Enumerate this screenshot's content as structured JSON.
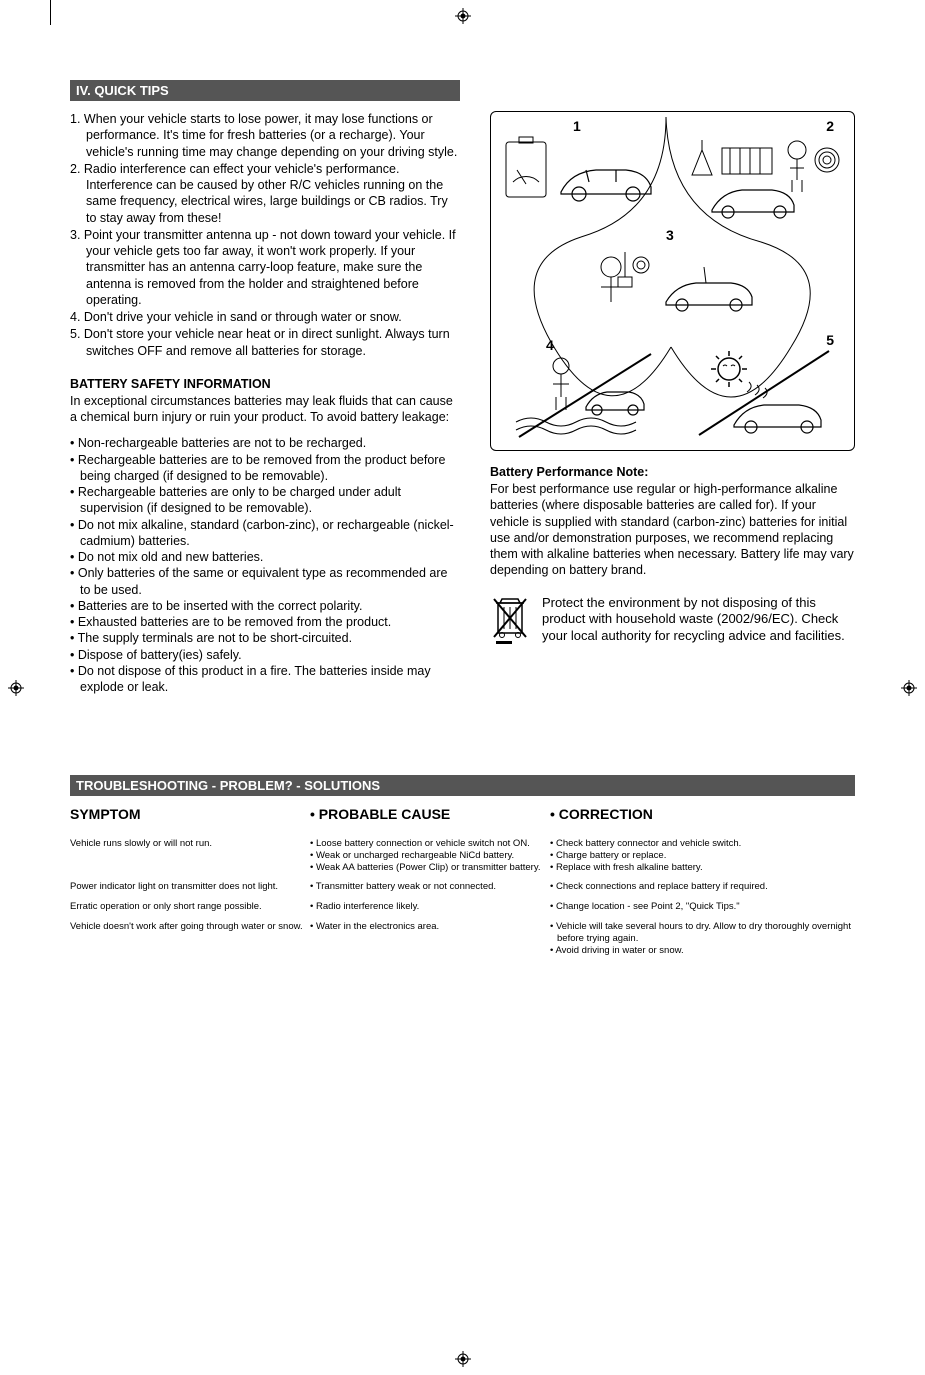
{
  "headers": {
    "quick_tips": "IV. QUICK TIPS",
    "troubleshooting": "TROUBLESHOOTING   -   PROBLEM? - SOLUTIONS"
  },
  "tips": [
    "1. When your vehicle starts to lose power, it may lose functions or performance. It's time for fresh batteries (or a recharge). Your vehicle's running time may change depending on your driving style.",
    "2. Radio interference can effect your vehicle's performance. Interference can be caused by other R/C vehicles running on the same frequency, electrical wires, large buildings or CB radios. Try to stay away from these!",
    "3. Point your transmitter antenna up - not down toward your  vehicle. If your vehicle gets too far away, it won't work properly. If your transmitter has an antenna carry-loop feature, make sure the antenna is removed from the holder and straightened before operating.",
    "4. Don't drive your vehicle in sand or through water or snow.",
    "5. Don't store your vehicle near heat or in direct sunlight. Always turn switches OFF and remove all batteries for storage."
  ],
  "battery_safety": {
    "heading": "BATTERY SAFETY INFORMATION",
    "intro": "In exceptional circumstances batteries may leak fluids that can cause a chemical burn injury or ruin your product. To avoid battery leakage:",
    "bullets": [
      "• Non-rechargeable batteries are not to be recharged.",
      "• Rechargeable batteries are to be removed from the product before being charged (if designed to be removable).",
      "• Rechargeable batteries are only to be charged under adult supervision (if designed to be removable).",
      "• Do not mix alkaline, standard (carbon-zinc), or rechargeable (nickel-cadmium) batteries.",
      "• Do not mix old and new batteries.",
      "• Only batteries of the same or equivalent type as recommended are to be used.",
      "• Batteries are to be inserted with the correct polarity.",
      "• Exhausted batteries are to be removed from the product.",
      "• The supply terminals are not to be short-circuited.",
      "• Dispose of battery(ies) safely.",
      "• Do not dispose of this product in a fire. The batteries inside may explode or leak."
    ]
  },
  "performance_note": {
    "heading": "Battery Performance Note:",
    "text": "For best performance use regular or high-performance alkaline batteries (where disposable batteries are called for). If your vehicle is supplied with standard (carbon-zinc) batteries for initial use and/or demonstration purposes, we recommend replacing them with alkaline batteries when necessary. Battery life may vary depending on battery brand."
  },
  "environment": {
    "text": "Protect the environment by not disposing of this product with household waste (2002/96/EC). Check your local authority for recycling advice and facilities."
  },
  "diagram": {
    "nums": [
      "1",
      "2",
      "3",
      "4",
      "5"
    ]
  },
  "troubleshoot": {
    "col_headings": [
      "SYMPTOM",
      "• PROBABLE CAUSE",
      "• CORRECTION"
    ],
    "rows": [
      {
        "symptom": "Vehicle runs slowly or will not run.",
        "cause": [
          "• Loose battery connection or vehicle switch not ON.",
          "• Weak or uncharged rechargeable NiCd battery.",
          "• Weak AA batteries (Power Clip) or transmitter battery."
        ],
        "correction": [
          "• Check battery connector and vehicle switch.",
          "• Charge battery or replace.",
          " ",
          "• Replace with fresh alkaline battery."
        ]
      },
      {
        "symptom": "Power indicator light on transmitter does not light.",
        "cause": [
          "• Transmitter battery weak or not connected."
        ],
        "correction": [
          "• Check connections and replace battery if required."
        ]
      },
      {
        "symptom": "Erratic operation or only short range possible.",
        "cause": [
          "• Radio interference likely."
        ],
        "correction": [
          "• Change location - see Point 2, \"Quick Tips.\""
        ]
      },
      {
        "symptom": "Vehicle doesn't work after going through water or snow.",
        "cause": [
          "• Water in the electronics area."
        ],
        "correction": [
          "• Vehicle will take several hours to dry. Allow to dry thoroughly overnight before trying again.",
          "• Avoid driving in water or snow."
        ]
      }
    ]
  },
  "colors": {
    "header_bg": "#555555",
    "header_fg": "#ffffff",
    "text": "#000000",
    "page_bg": "#ffffff"
  }
}
